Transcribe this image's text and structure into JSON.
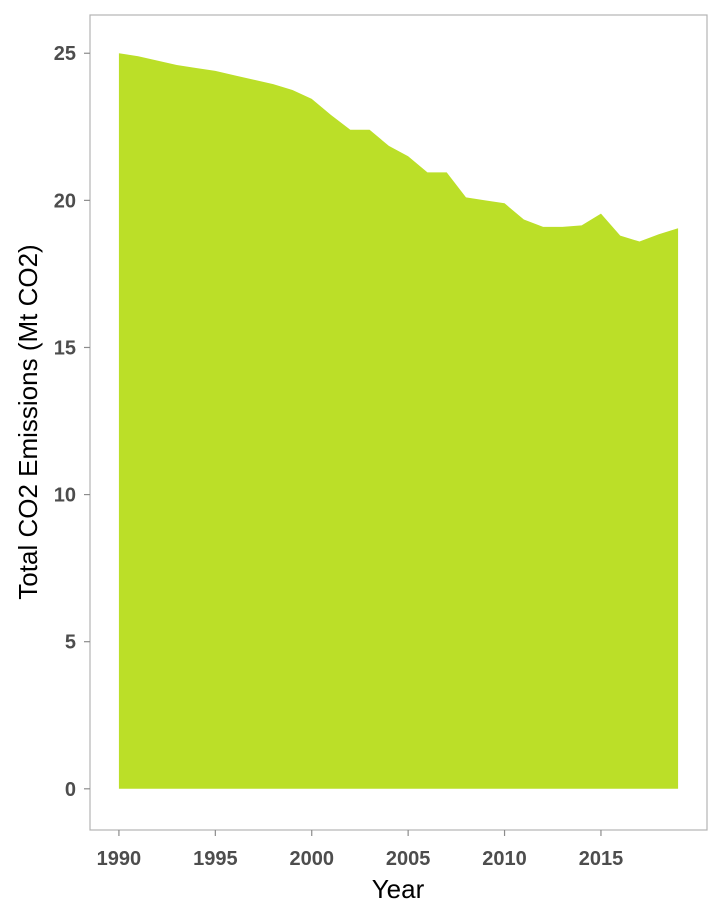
{
  "chart_data": {
    "type": "area",
    "title": "",
    "xlabel": "Year",
    "ylabel": "Total CO2 Emissions (Mt CO2)",
    "xlim": [
      1988.5,
      2020.5
    ],
    "ylim": [
      -1.4,
      26.3
    ],
    "x_ticks": [
      1990,
      1995,
      2000,
      2005,
      2010,
      2015
    ],
    "y_ticks": [
      0,
      5,
      10,
      15,
      20,
      25
    ],
    "x_tick_labels": [
      "1990",
      "1995",
      "2000",
      "2005",
      "2010",
      "2015"
    ],
    "y_tick_labels": [
      "0",
      "5",
      "10",
      "15",
      "20",
      "25"
    ],
    "grid": false,
    "legend": "none",
    "fill_color": "#bbdf28",
    "series": [
      {
        "x": [
          1990,
          1991,
          1992,
          1993,
          1994,
          1995,
          1996,
          1997,
          1998,
          1999,
          2000,
          2001,
          2002,
          2003,
          2004,
          2005,
          2006,
          2007,
          2008,
          2009,
          2010,
          2011,
          2012,
          2013,
          2014,
          2015,
          2016,
          2017,
          2018,
          2019
        ],
        "values": [
          25.0,
          24.9,
          24.75,
          24.6,
          24.5,
          24.4,
          24.25,
          24.1,
          23.95,
          23.75,
          23.45,
          22.9,
          22.4,
          22.4,
          21.85,
          21.5,
          20.95,
          20.95,
          20.1,
          20.0,
          19.9,
          19.35,
          19.1,
          19.1,
          19.15,
          19.55,
          18.8,
          18.6,
          18.85,
          19.05
        ]
      }
    ]
  }
}
